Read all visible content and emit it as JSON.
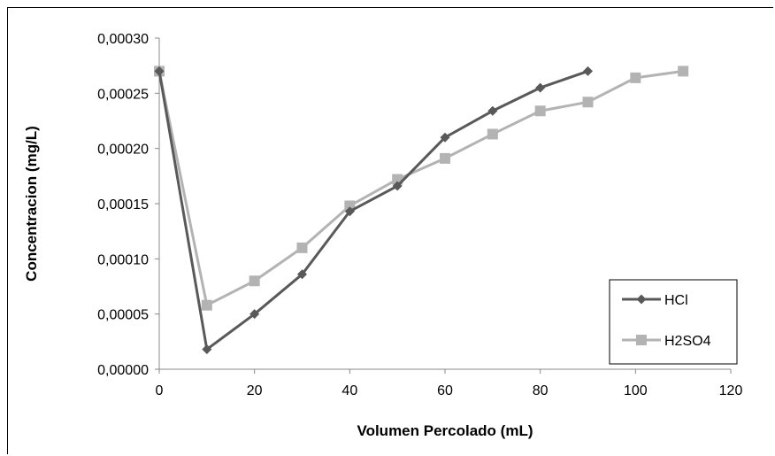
{
  "chart_data": {
    "type": "line",
    "title": "",
    "xlabel": "Volumen Percolado (mL)",
    "ylabel": "Concentracion (mg/L)",
    "xlim": [
      0,
      120
    ],
    "ylim": [
      0,
      0.0003
    ],
    "x_ticks": [
      0,
      20,
      40,
      60,
      80,
      100,
      120
    ],
    "x_tick_labels": [
      "0",
      "20",
      "40",
      "60",
      "80",
      "100",
      "120"
    ],
    "y_ticks": [
      0,
      5e-05,
      0.0001,
      0.00015,
      0.0002,
      0.00025,
      0.0003
    ],
    "y_tick_labels": [
      "0,00000",
      "0,00005",
      "0,00010",
      "0,00015",
      "0,00020",
      "0,00025",
      "0,00030"
    ],
    "grid": false,
    "legend_position": "bottom-right",
    "series": [
      {
        "name": "HCl",
        "color": "#595959",
        "marker": "diamond",
        "x": [
          0,
          10,
          20,
          30,
          40,
          50,
          60,
          70,
          80,
          90
        ],
        "y": [
          0.00027,
          1.8e-05,
          5e-05,
          8.6e-05,
          0.000143,
          0.000166,
          0.00021,
          0.000234,
          0.000255,
          0.00027
        ]
      },
      {
        "name": "H2SO4",
        "color": "#b3b3b3",
        "marker": "square",
        "x": [
          0,
          10,
          20,
          30,
          40,
          50,
          60,
          70,
          80,
          90,
          100,
          110
        ],
        "y": [
          0.00027,
          5.8e-05,
          8e-05,
          0.00011,
          0.000148,
          0.000172,
          0.000191,
          0.000213,
          0.000234,
          0.000242,
          0.000264,
          0.00027
        ]
      }
    ]
  }
}
